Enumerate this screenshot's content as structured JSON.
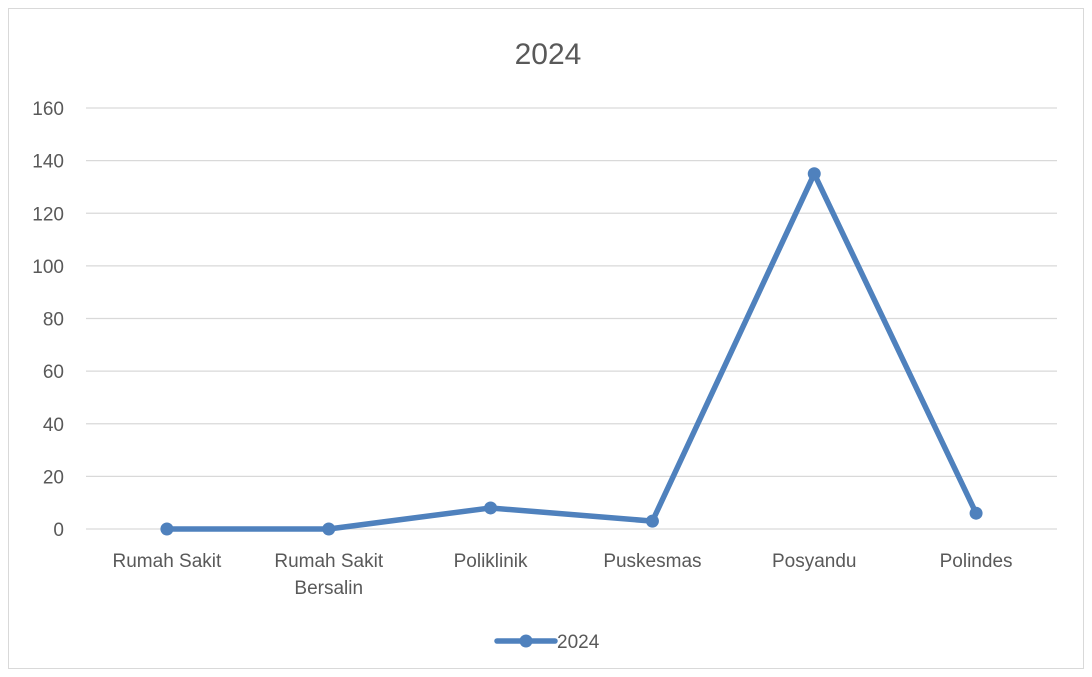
{
  "chart_data": {
    "type": "line",
    "title": "2024",
    "categories": [
      [
        "Rumah Sakit"
      ],
      [
        "Rumah Sakit",
        "Bersalin"
      ],
      [
        "Poliklinik"
      ],
      [
        "Puskesmas"
      ],
      [
        "Posyandu"
      ],
      [
        "Polindes"
      ]
    ],
    "series": [
      {
        "name": "2024",
        "values": [
          0,
          0,
          8,
          3,
          135,
          6
        ],
        "color": "#4f81bd"
      }
    ],
    "ylim": [
      0,
      160
    ],
    "yticks": [
      0,
      20,
      40,
      60,
      80,
      100,
      120,
      140,
      160
    ],
    "grid": true,
    "legend_position": "bottom"
  }
}
